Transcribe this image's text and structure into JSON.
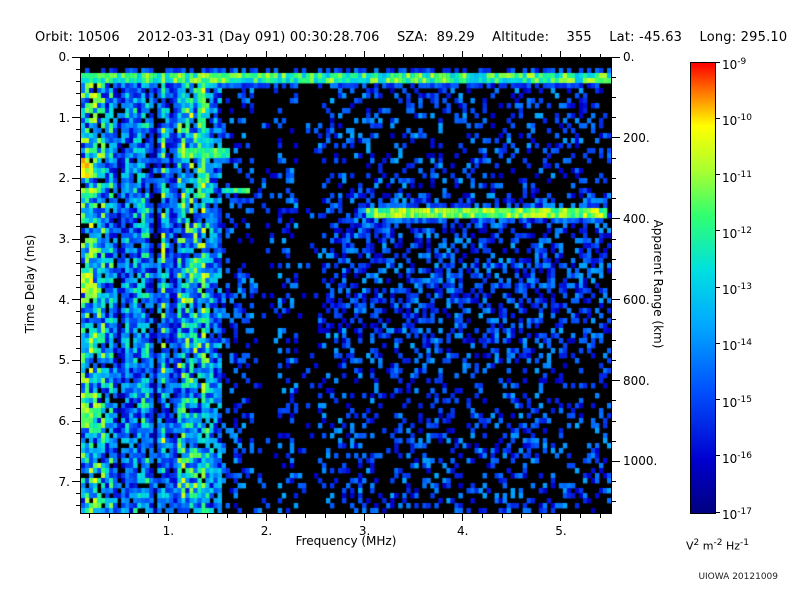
{
  "header": {
    "segments": [
      "Orbit: 10506",
      "2012-03-31 (Day 091) 00:30:28.706",
      "SZA:  89.29",
      "Altitude:    355",
      "Lat: -45.63",
      "Long: 295.10"
    ],
    "separator": "    "
  },
  "credit": "UIOWA 20121009",
  "chart_data": {
    "type": "heatmap",
    "subtype": "radar-sounder-ionogram-spectrogram",
    "background": "#000000",
    "x_axis": {
      "label": "Frequency (MHz)",
      "range": [
        0.1,
        5.5
      ],
      "major_ticks": [
        {
          "value": 1,
          "label": "1."
        },
        {
          "value": 2,
          "label": "2."
        },
        {
          "value": 3,
          "label": "3."
        },
        {
          "value": 4,
          "label": "4."
        },
        {
          "value": 5,
          "label": "5."
        }
      ],
      "minor_tick_step": 0.2
    },
    "y_axis_left": {
      "label": "Time Delay (ms)",
      "range": [
        0,
        7.5
      ],
      "major_ticks": [
        {
          "value": 0,
          "label": "0."
        },
        {
          "value": 1,
          "label": "1."
        },
        {
          "value": 2,
          "label": "2."
        },
        {
          "value": 3,
          "label": "3."
        },
        {
          "value": 4,
          "label": "4."
        },
        {
          "value": 5,
          "label": "5."
        },
        {
          "value": 6,
          "label": "6."
        },
        {
          "value": 7,
          "label": "7."
        }
      ],
      "minor_tick_step": 0.2
    },
    "y_axis_right": {
      "label": "Apparent Range (km)",
      "range": [
        0,
        1125
      ],
      "major_ticks": [
        {
          "value": 0,
          "label": "0."
        },
        {
          "value": 200,
          "label": "200."
        },
        {
          "value": 400,
          "label": "400."
        },
        {
          "value": 600,
          "label": "600."
        },
        {
          "value": 800,
          "label": "800."
        },
        {
          "value": 1000,
          "label": "1000."
        }
      ],
      "minor_tick_step": 50
    },
    "colorbar": {
      "tick_exponents": [
        -9,
        -10,
        -11,
        -12,
        -13,
        -14,
        -15,
        -16,
        -17
      ],
      "unit_parts": [
        {
          "base": "V",
          "exp": "2"
        },
        {
          "base": "m",
          "exp": "-2"
        },
        {
          "base": "Hz",
          "exp": "-1"
        }
      ],
      "stops": [
        {
          "t": 0.0,
          "color": "#000080"
        },
        {
          "t": 0.12,
          "color": "#0000d0"
        },
        {
          "t": 0.28,
          "color": "#0055ff"
        },
        {
          "t": 0.42,
          "color": "#00aaff"
        },
        {
          "t": 0.54,
          "color": "#00e0e0"
        },
        {
          "t": 0.66,
          "color": "#30ff70"
        },
        {
          "t": 0.76,
          "color": "#a8ff30"
        },
        {
          "t": 0.86,
          "color": "#ffff00"
        },
        {
          "t": 0.93,
          "color": "#ff8000"
        },
        {
          "t": 1.0,
          "color": "#ff0000"
        }
      ]
    },
    "base_speckle": {
      "probability": 0.27,
      "intensity_range": [
        0.08,
        0.42
      ]
    },
    "features": [
      {
        "type": "horizontal_band",
        "td": 0.35,
        "f_range": [
          0.1,
          5.5
        ],
        "intensity": 0.62,
        "label": "transmitter pulse band"
      },
      {
        "type": "trace",
        "td": 2.55,
        "f_range": [
          3.0,
          5.45
        ],
        "intensity": 0.7,
        "label": "ionospheric echo trace near 400 km apparent range"
      },
      {
        "type": "noise_band",
        "f_range": [
          0.1,
          1.55
        ],
        "label": "low-frequency noise striations"
      },
      {
        "type": "vertical_line",
        "f": 1.32,
        "td_range": [
          0.5,
          2.3
        ],
        "intensity": 0.6,
        "label": "plasma resonance line"
      },
      {
        "type": "segment",
        "td": 1.55,
        "f_range": [
          1.1,
          1.62
        ],
        "intensity": 0.6
      },
      {
        "type": "segment",
        "td": 2.2,
        "f_range": [
          1.55,
          1.8
        ],
        "intensity": 0.55
      },
      {
        "type": "blob",
        "f": 0.15,
        "td": 1.85,
        "intensity": 0.8
      },
      {
        "type": "blob",
        "f": 0.15,
        "td": 3.7,
        "intensity": 0.72
      },
      {
        "type": "blob",
        "f": 0.15,
        "td": 5.9,
        "intensity": 0.68
      },
      {
        "type": "diffuse",
        "f_range": [
          2.55,
          5.5
        ],
        "td_range": [
          2.2,
          4.7
        ],
        "density": 0.18,
        "label": "diffuse scattered echo"
      },
      {
        "type": "diffuse",
        "f_range": [
          2.9,
          3.35
        ],
        "td_range": [
          2.45,
          3.0
        ],
        "density": 0.3
      },
      {
        "type": "dark_column",
        "f_range": [
          1.84,
          2.12
        ]
      },
      {
        "type": "dark_column",
        "f_range": [
          2.3,
          2.5
        ]
      }
    ]
  }
}
